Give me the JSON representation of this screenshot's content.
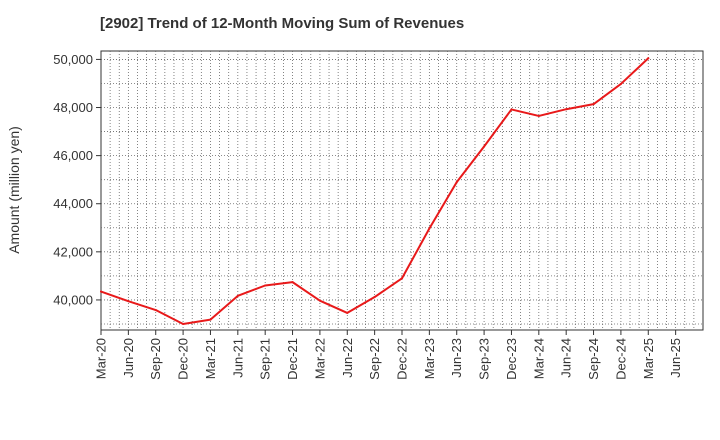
{
  "chart_data": {
    "type": "line",
    "title": "[2902]  Trend of 12-Month Moving Sum of Revenues",
    "xlabel": "",
    "ylabel": "Amount (million yen)",
    "x_tick_labels": [
      "Mar-20",
      "Jun-20",
      "Sep-20",
      "Dec-20",
      "Mar-21",
      "Jun-21",
      "Sep-21",
      "Dec-21",
      "Mar-22",
      "Jun-22",
      "Sep-22",
      "Dec-22",
      "Mar-23",
      "Jun-23",
      "Sep-23",
      "Dec-23",
      "Mar-24",
      "Jun-24",
      "Sep-24",
      "Dec-24",
      "Mar-25",
      "Jun-25"
    ],
    "y_ticks": [
      40000,
      42000,
      44000,
      46000,
      48000,
      50000
    ],
    "y_tick_labels": [
      "40,000",
      "42,000",
      "44,000",
      "46,000",
      "48,000",
      "50,000"
    ],
    "ylim": [
      38750,
      50350
    ],
    "grid": true,
    "series": [
      {
        "color": "#e8191a",
        "x": [
          "Mar-20",
          "Jun-20",
          "Sep-20",
          "Dec-20",
          "Mar-21",
          "Jun-21",
          "Sep-21",
          "Dec-21",
          "Mar-22",
          "Jun-22",
          "Sep-22",
          "Dec-22",
          "Mar-23",
          "Jun-23",
          "Sep-23",
          "Dec-23",
          "Mar-24",
          "Jun-24",
          "Sep-24",
          "Dec-24",
          "Mar-25"
        ],
        "values": [
          40350,
          39950,
          39580,
          39000,
          39180,
          40170,
          40600,
          40740,
          39970,
          39460,
          40120,
          40900,
          42970,
          44900,
          46380,
          47920,
          47650,
          47930,
          48140,
          48980,
          50050
        ]
      }
    ]
  }
}
